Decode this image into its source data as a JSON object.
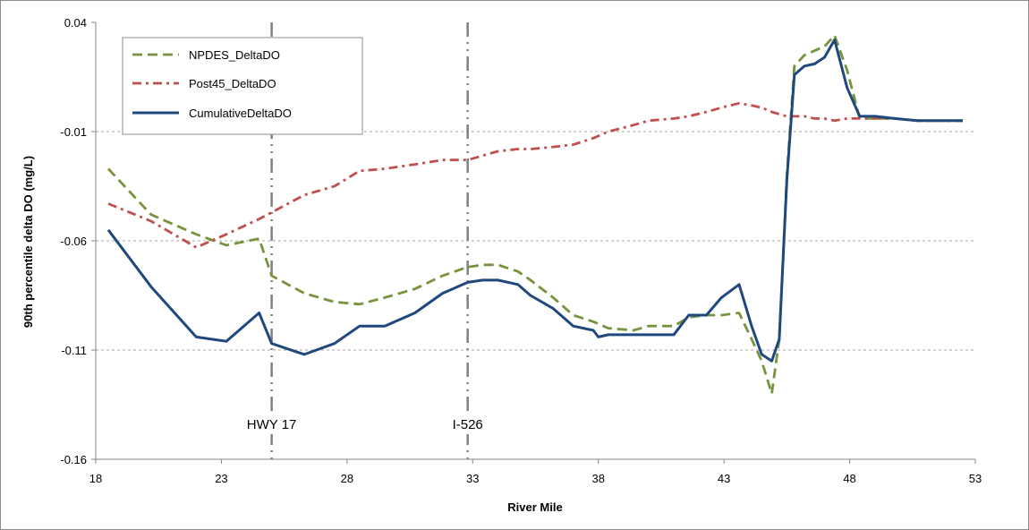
{
  "chart_data": {
    "type": "line",
    "title": "",
    "xlabel": "River Mile",
    "ylabel": "90th percentile delta DO (mg/L)",
    "xlim": [
      18,
      53
    ],
    "ylim": [
      -0.16,
      0.04
    ],
    "x_ticks": [
      18,
      23,
      28,
      33,
      38,
      43,
      48,
      53
    ],
    "y_ticks": [
      -0.16,
      -0.11,
      -0.06,
      -0.01,
      0.04
    ],
    "x_tick_labels": [
      "18",
      "23",
      "28",
      "33",
      "38",
      "43",
      "48",
      "53"
    ],
    "y_tick_labels": [
      "-0.16",
      "-0.11",
      "-0.06",
      "-0.01",
      "0.04"
    ],
    "grid": "horizontal dashed",
    "legend_position": "top-left",
    "series": [
      {
        "name": "NPDES_DeltaDO",
        "color": "#77933C",
        "style": "dashed",
        "x": [
          18.5,
          20.2,
          22.0,
          23.2,
          24.5,
          25.0,
          26.3,
          27.5,
          28.5,
          29.5,
          30.7,
          31.8,
          32.8,
          33.4,
          34.0,
          34.8,
          35.3,
          36.2,
          37.0,
          37.8,
          38.4,
          39.4,
          40.0,
          41.0,
          41.6,
          42.3,
          42.9,
          43.6,
          44.1,
          44.5,
          44.9,
          45.2,
          45.5,
          45.8,
          46.2,
          46.6,
          47.0,
          47.4,
          47.9,
          48.4,
          49.0,
          49.8,
          50.7,
          51.5,
          52.5
        ],
        "y": [
          -0.027,
          -0.048,
          -0.057,
          -0.062,
          -0.059,
          -0.076,
          -0.084,
          -0.088,
          -0.089,
          -0.086,
          -0.082,
          -0.076,
          -0.072,
          -0.071,
          -0.071,
          -0.074,
          -0.078,
          -0.086,
          -0.094,
          -0.097,
          -0.1,
          -0.101,
          -0.099,
          -0.099,
          -0.095,
          -0.094,
          -0.094,
          -0.093,
          -0.105,
          -0.115,
          -0.13,
          -0.105,
          -0.03,
          0.02,
          0.025,
          0.027,
          0.029,
          0.034,
          0.018,
          -0.004,
          -0.004,
          -0.004,
          -0.005,
          -0.005,
          -0.005
        ]
      },
      {
        "name": "Post45_DeltaDO",
        "color": "#C0504D",
        "style": "dash-dot",
        "x": [
          18.5,
          20.2,
          22.0,
          23.2,
          24.5,
          25.0,
          26.3,
          27.5,
          28.5,
          29.5,
          30.7,
          31.8,
          32.8,
          33.4,
          34.0,
          34.8,
          35.3,
          36.2,
          37.0,
          37.8,
          38.4,
          39.4,
          40.0,
          41.0,
          41.6,
          42.3,
          42.9,
          43.6,
          44.1,
          44.5,
          44.9,
          45.2,
          45.5,
          45.8,
          46.2,
          46.6,
          47.0,
          47.4,
          47.9,
          48.4,
          49.0,
          49.8,
          50.7,
          51.5,
          52.5
        ],
        "y": [
          -0.043,
          -0.051,
          -0.063,
          -0.057,
          -0.05,
          -0.047,
          -0.039,
          -0.035,
          -0.028,
          -0.027,
          -0.025,
          -0.023,
          -0.023,
          -0.021,
          -0.019,
          -0.018,
          -0.018,
          -0.017,
          -0.016,
          -0.013,
          -0.01,
          -0.007,
          -0.005,
          -0.004,
          -0.003,
          -0.001,
          0.001,
          0.003,
          0.002,
          0.001,
          -0.001,
          -0.002,
          -0.003,
          -0.003,
          -0.003,
          -0.004,
          -0.004,
          -0.005,
          -0.004,
          -0.004,
          -0.004,
          -0.004,
          -0.005,
          -0.005,
          -0.005
        ]
      },
      {
        "name": "CumulativeDeltaDO",
        "color": "#1F497D",
        "style": "solid",
        "x": [
          18.5,
          20.2,
          22.0,
          23.2,
          24.5,
          25.0,
          26.3,
          27.5,
          28.5,
          29.5,
          30.7,
          31.8,
          32.8,
          33.4,
          34.0,
          34.8,
          35.3,
          36.2,
          37.0,
          37.8,
          38.0,
          38.4,
          39.4,
          40.0,
          41.0,
          41.6,
          42.3,
          42.9,
          43.6,
          44.1,
          44.5,
          44.9,
          45.2,
          45.5,
          45.8,
          46.2,
          46.6,
          47.0,
          47.4,
          47.9,
          48.4,
          49.0,
          49.8,
          50.7,
          51.5,
          52.5
        ],
        "y": [
          -0.055,
          -0.081,
          -0.104,
          -0.106,
          -0.093,
          -0.107,
          -0.112,
          -0.107,
          -0.099,
          -0.099,
          -0.093,
          -0.084,
          -0.079,
          -0.078,
          -0.078,
          -0.08,
          -0.085,
          -0.091,
          -0.099,
          -0.101,
          -0.104,
          -0.103,
          -0.103,
          -0.103,
          -0.103,
          -0.094,
          -0.094,
          -0.086,
          -0.08,
          -0.099,
          -0.112,
          -0.115,
          -0.105,
          -0.032,
          0.016,
          0.02,
          0.021,
          0.024,
          0.032,
          0.01,
          -0.003,
          -0.003,
          -0.004,
          -0.005,
          -0.005,
          -0.005
        ]
      }
    ],
    "annotations": [
      {
        "label": "HWY 17",
        "x": 25.0
      },
      {
        "label": "I-526",
        "x": 32.8
      }
    ]
  }
}
